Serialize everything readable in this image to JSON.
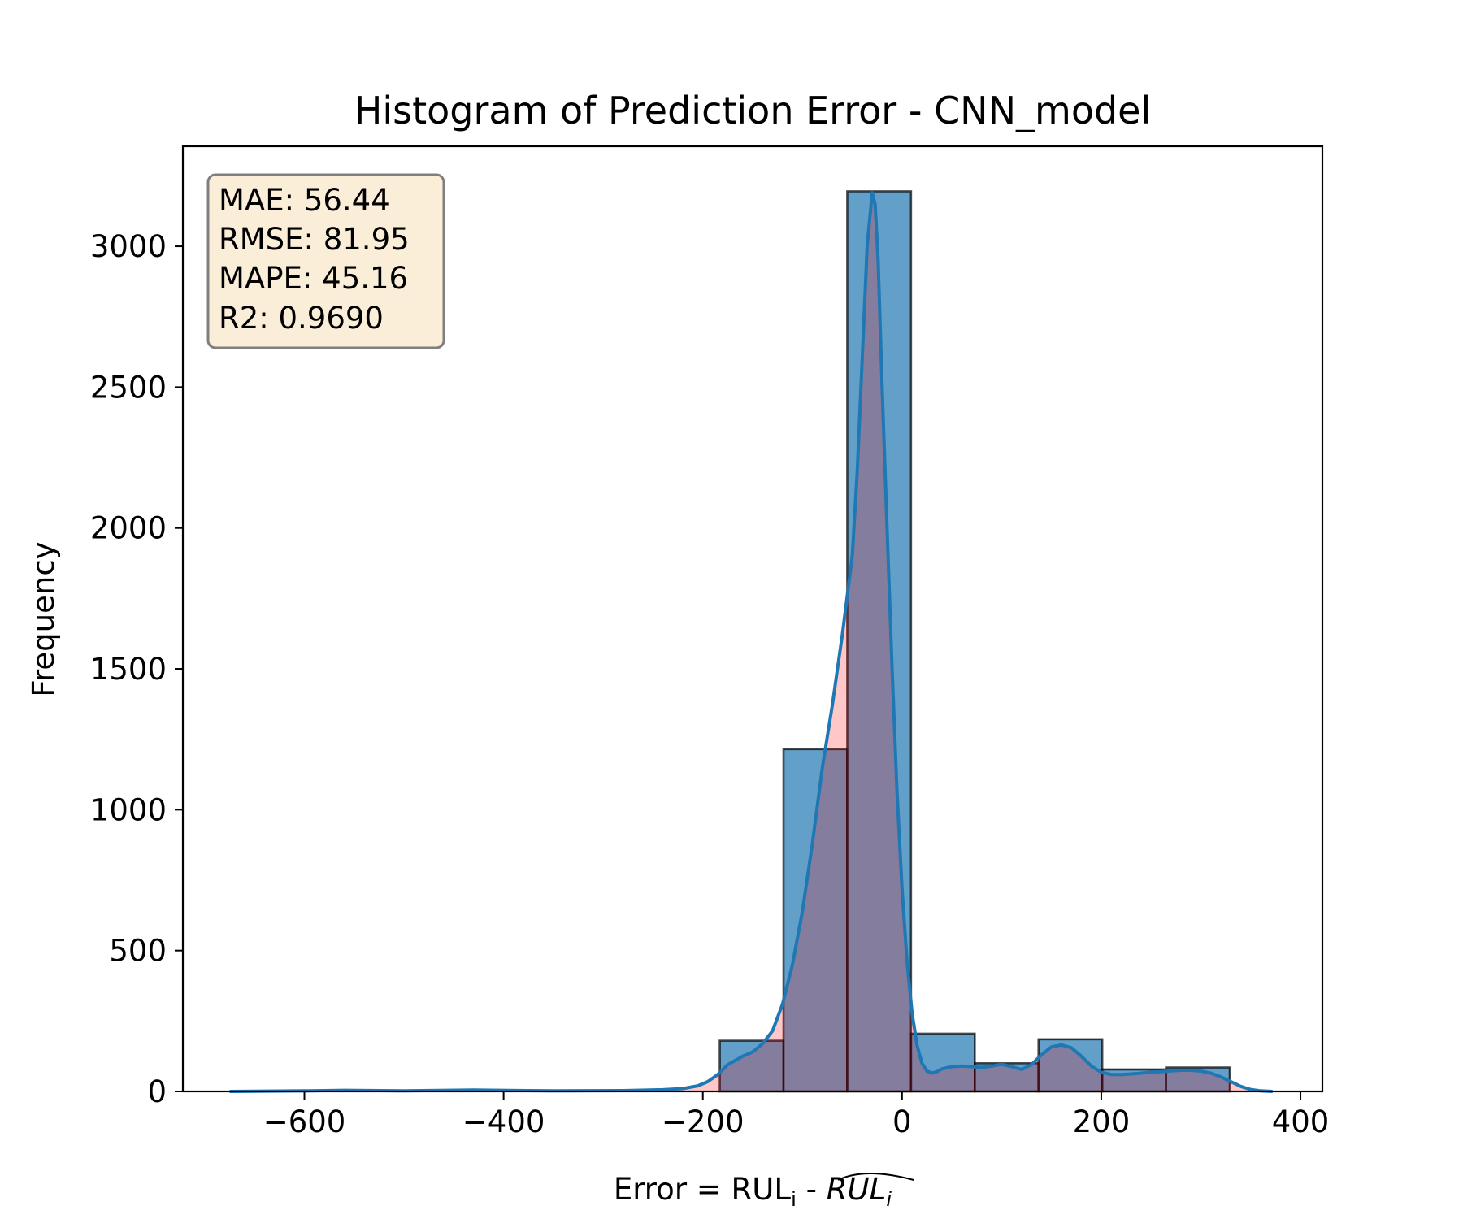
{
  "chart_data": {
    "type": "bar",
    "title": "Histogram of Prediction Error - CNN_model",
    "xlabel": {
      "prefix": "Error = RUL",
      "sub1": "i",
      "mid": " - ",
      "italic": "RUL",
      "sub2": "i"
    },
    "ylabel": "Frequency",
    "xlim": [
      -722,
      422
    ],
    "ylim": [
      0,
      3355
    ],
    "x_ticks": [
      {
        "value": -600,
        "label": "−600"
      },
      {
        "value": -400,
        "label": "−400"
      },
      {
        "value": -200,
        "label": "−200"
      },
      {
        "value": 0,
        "label": "0"
      },
      {
        "value": 200,
        "label": "200"
      },
      {
        "value": 400,
        "label": "400"
      }
    ],
    "y_ticks": [
      {
        "value": 0,
        "label": "0"
      },
      {
        "value": 500,
        "label": "500"
      },
      {
        "value": 1000,
        "label": "1000"
      },
      {
        "value": 1500,
        "label": "1500"
      },
      {
        "value": 2000,
        "label": "2000"
      },
      {
        "value": 2500,
        "label": "2500"
      },
      {
        "value": 3000,
        "label": "3000"
      }
    ],
    "bins": [
      {
        "x0": -183,
        "x1": -119,
        "count": 180
      },
      {
        "x0": -119,
        "x1": -55,
        "count": 1215
      },
      {
        "x0": -55,
        "x1": 9,
        "count": 3195
      },
      {
        "x0": 9,
        "x1": 73,
        "count": 205
      },
      {
        "x0": 73,
        "x1": 137,
        "count": 100
      },
      {
        "x0": 137,
        "x1": 201,
        "count": 185
      },
      {
        "x0": 201,
        "x1": 265,
        "count": 78
      },
      {
        "x0": 265,
        "x1": 329,
        "count": 85
      }
    ],
    "kde": {
      "x": [
        -675,
        -600,
        -560,
        -500,
        -430,
        -350,
        -280,
        -240,
        -220,
        -205,
        -195,
        -185,
        -175,
        -160,
        -150,
        -140,
        -130,
        -120,
        -110,
        -100,
        -90,
        -80,
        -70,
        -60,
        -50,
        -45,
        -40,
        -35,
        -30,
        -27,
        -24,
        -20,
        -15,
        -10,
        -5,
        0,
        5,
        10,
        15,
        20,
        25,
        30,
        35,
        40,
        50,
        60,
        70,
        80,
        90,
        100,
        110,
        120,
        130,
        140,
        150,
        160,
        170,
        180,
        190,
        200,
        210,
        220,
        230,
        240,
        250,
        260,
        270,
        280,
        290,
        300,
        310,
        320,
        330,
        340,
        350,
        360,
        372
      ],
      "y": [
        0,
        2,
        4,
        2,
        5,
        2,
        3,
        6,
        10,
        20,
        35,
        60,
        95,
        125,
        140,
        170,
        215,
        310,
        450,
        640,
        880,
        1150,
        1370,
        1620,
        1900,
        2200,
        2600,
        3000,
        3190,
        3150,
        2950,
        2500,
        2000,
        1500,
        1060,
        720,
        460,
        280,
        165,
        100,
        72,
        65,
        70,
        80,
        88,
        90,
        88,
        85,
        90,
        96,
        88,
        78,
        95,
        130,
        158,
        165,
        155,
        125,
        90,
        68,
        60,
        60,
        62,
        65,
        68,
        70,
        73,
        75,
        75,
        72,
        65,
        52,
        35,
        18,
        7,
        2,
        0
      ]
    },
    "colors": {
      "bar_fill": "#1f77b4",
      "bar_edge": "#000000",
      "kde_line": "#1f77b4",
      "kde_fill": "#ff0000",
      "stats_box_bg": "#f5deb3"
    },
    "grid": false,
    "legend": "none"
  },
  "stats": [
    "MAE: 56.44",
    "RMSE: 81.95",
    "MAPE: 45.16",
    "R2: 0.9690"
  ]
}
